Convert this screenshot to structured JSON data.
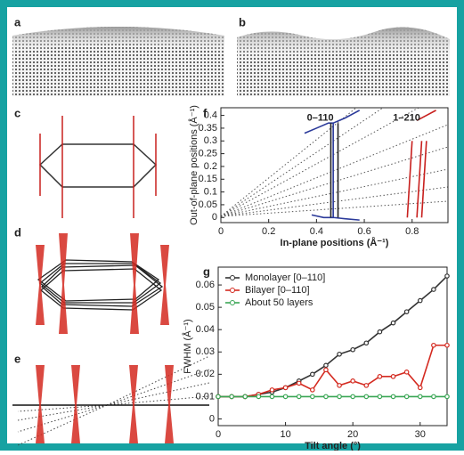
{
  "panels": [
    "a",
    "b",
    "c",
    "d",
    "e",
    "f",
    "g"
  ],
  "chart_data": [
    {
      "type": "line",
      "x_label": "In-plane positions (Å⁻¹)",
      "y_label": "Out-of-plane positions (Å⁻¹)",
      "annotations": [
        "0–110",
        "1–210"
      ],
      "xlim": [
        0,
        0.95
      ],
      "ylim": [
        -0.02,
        0.43
      ],
      "xticks": [
        0,
        0.2,
        0.4,
        0.6,
        0.8
      ],
      "yticks": [
        0,
        0.05,
        0.1,
        0.15,
        0.2,
        0.25,
        0.3,
        0.35,
        0.4
      ],
      "series": [
        {
          "color": "#2b3a9a",
          "x": [
            0.35,
            0.4,
            0.45,
            0.47,
            0.47,
            0.47,
            0.47,
            null,
            0.47,
            0.52,
            0.58,
            null,
            0.38,
            0.43,
            0.47,
            0.52,
            0.58
          ],
          "values": [
            0.33,
            0.35,
            0.37,
            0.37,
            0.25,
            0.1,
            0,
            null,
            0.37,
            0.39,
            0.42,
            null,
            0.01,
            0,
            0,
            -0.005,
            -0.01
          ]
        },
        {
          "color": "#222222",
          "x": [
            0.46,
            0.46,
            null,
            0.49,
            0.49
          ],
          "values": [
            0.37,
            0,
            null,
            0.37,
            0
          ]
        },
        {
          "color": "#c8201e",
          "x": [
            0.8,
            0.78,
            null,
            0.84,
            0.82,
            null,
            0.86,
            0.84,
            null,
            0.82,
            0.9
          ],
          "values": [
            0.3,
            0,
            null,
            0.3,
            0,
            null,
            0.3,
            0,
            null,
            0.38,
            0.42
          ]
        }
      ]
    },
    {
      "type": "line",
      "x_label": "Tilt angle (°)",
      "y_label": "FWHM (Å⁻¹)",
      "xlim": [
        0,
        34
      ],
      "ylim": [
        -0.003,
        0.068
      ],
      "xticks": [
        0,
        10,
        20,
        30
      ],
      "yticks": [
        0,
        0.01,
        0.02,
        0.03,
        0.04,
        0.05,
        0.06
      ],
      "legend": "upper left",
      "x": [
        0,
        2,
        4,
        6,
        8,
        10,
        12,
        14,
        16,
        18,
        20,
        22,
        24,
        26,
        28,
        30,
        32,
        34
      ],
      "series": [
        {
          "name": "Monolayer [0–110]",
          "color": "#333333",
          "values": [
            0.01,
            0.01,
            0.01,
            0.011,
            0.012,
            0.014,
            0.017,
            0.02,
            0.024,
            0.029,
            0.031,
            0.034,
            0.039,
            0.043,
            0.048,
            0.053,
            0.058,
            0.064
          ]
        },
        {
          "name": "Bilayer [0–110]",
          "color": "#d42a20",
          "values": [
            0.01,
            0.01,
            0.01,
            0.011,
            0.013,
            0.014,
            0.016,
            0.013,
            0.022,
            0.015,
            0.017,
            0.015,
            0.019,
            0.019,
            0.021,
            0.014,
            0.033,
            0.033
          ]
        },
        {
          "name": "About 50 layers",
          "color": "#3aa655",
          "values": [
            0.01,
            0.01,
            0.01,
            0.01,
            0.01,
            0.01,
            0.01,
            0.01,
            0.01,
            0.01,
            0.01,
            0.01,
            0.01,
            0.01,
            0.01,
            0.01,
            0.01,
            0.01
          ]
        }
      ]
    }
  ]
}
